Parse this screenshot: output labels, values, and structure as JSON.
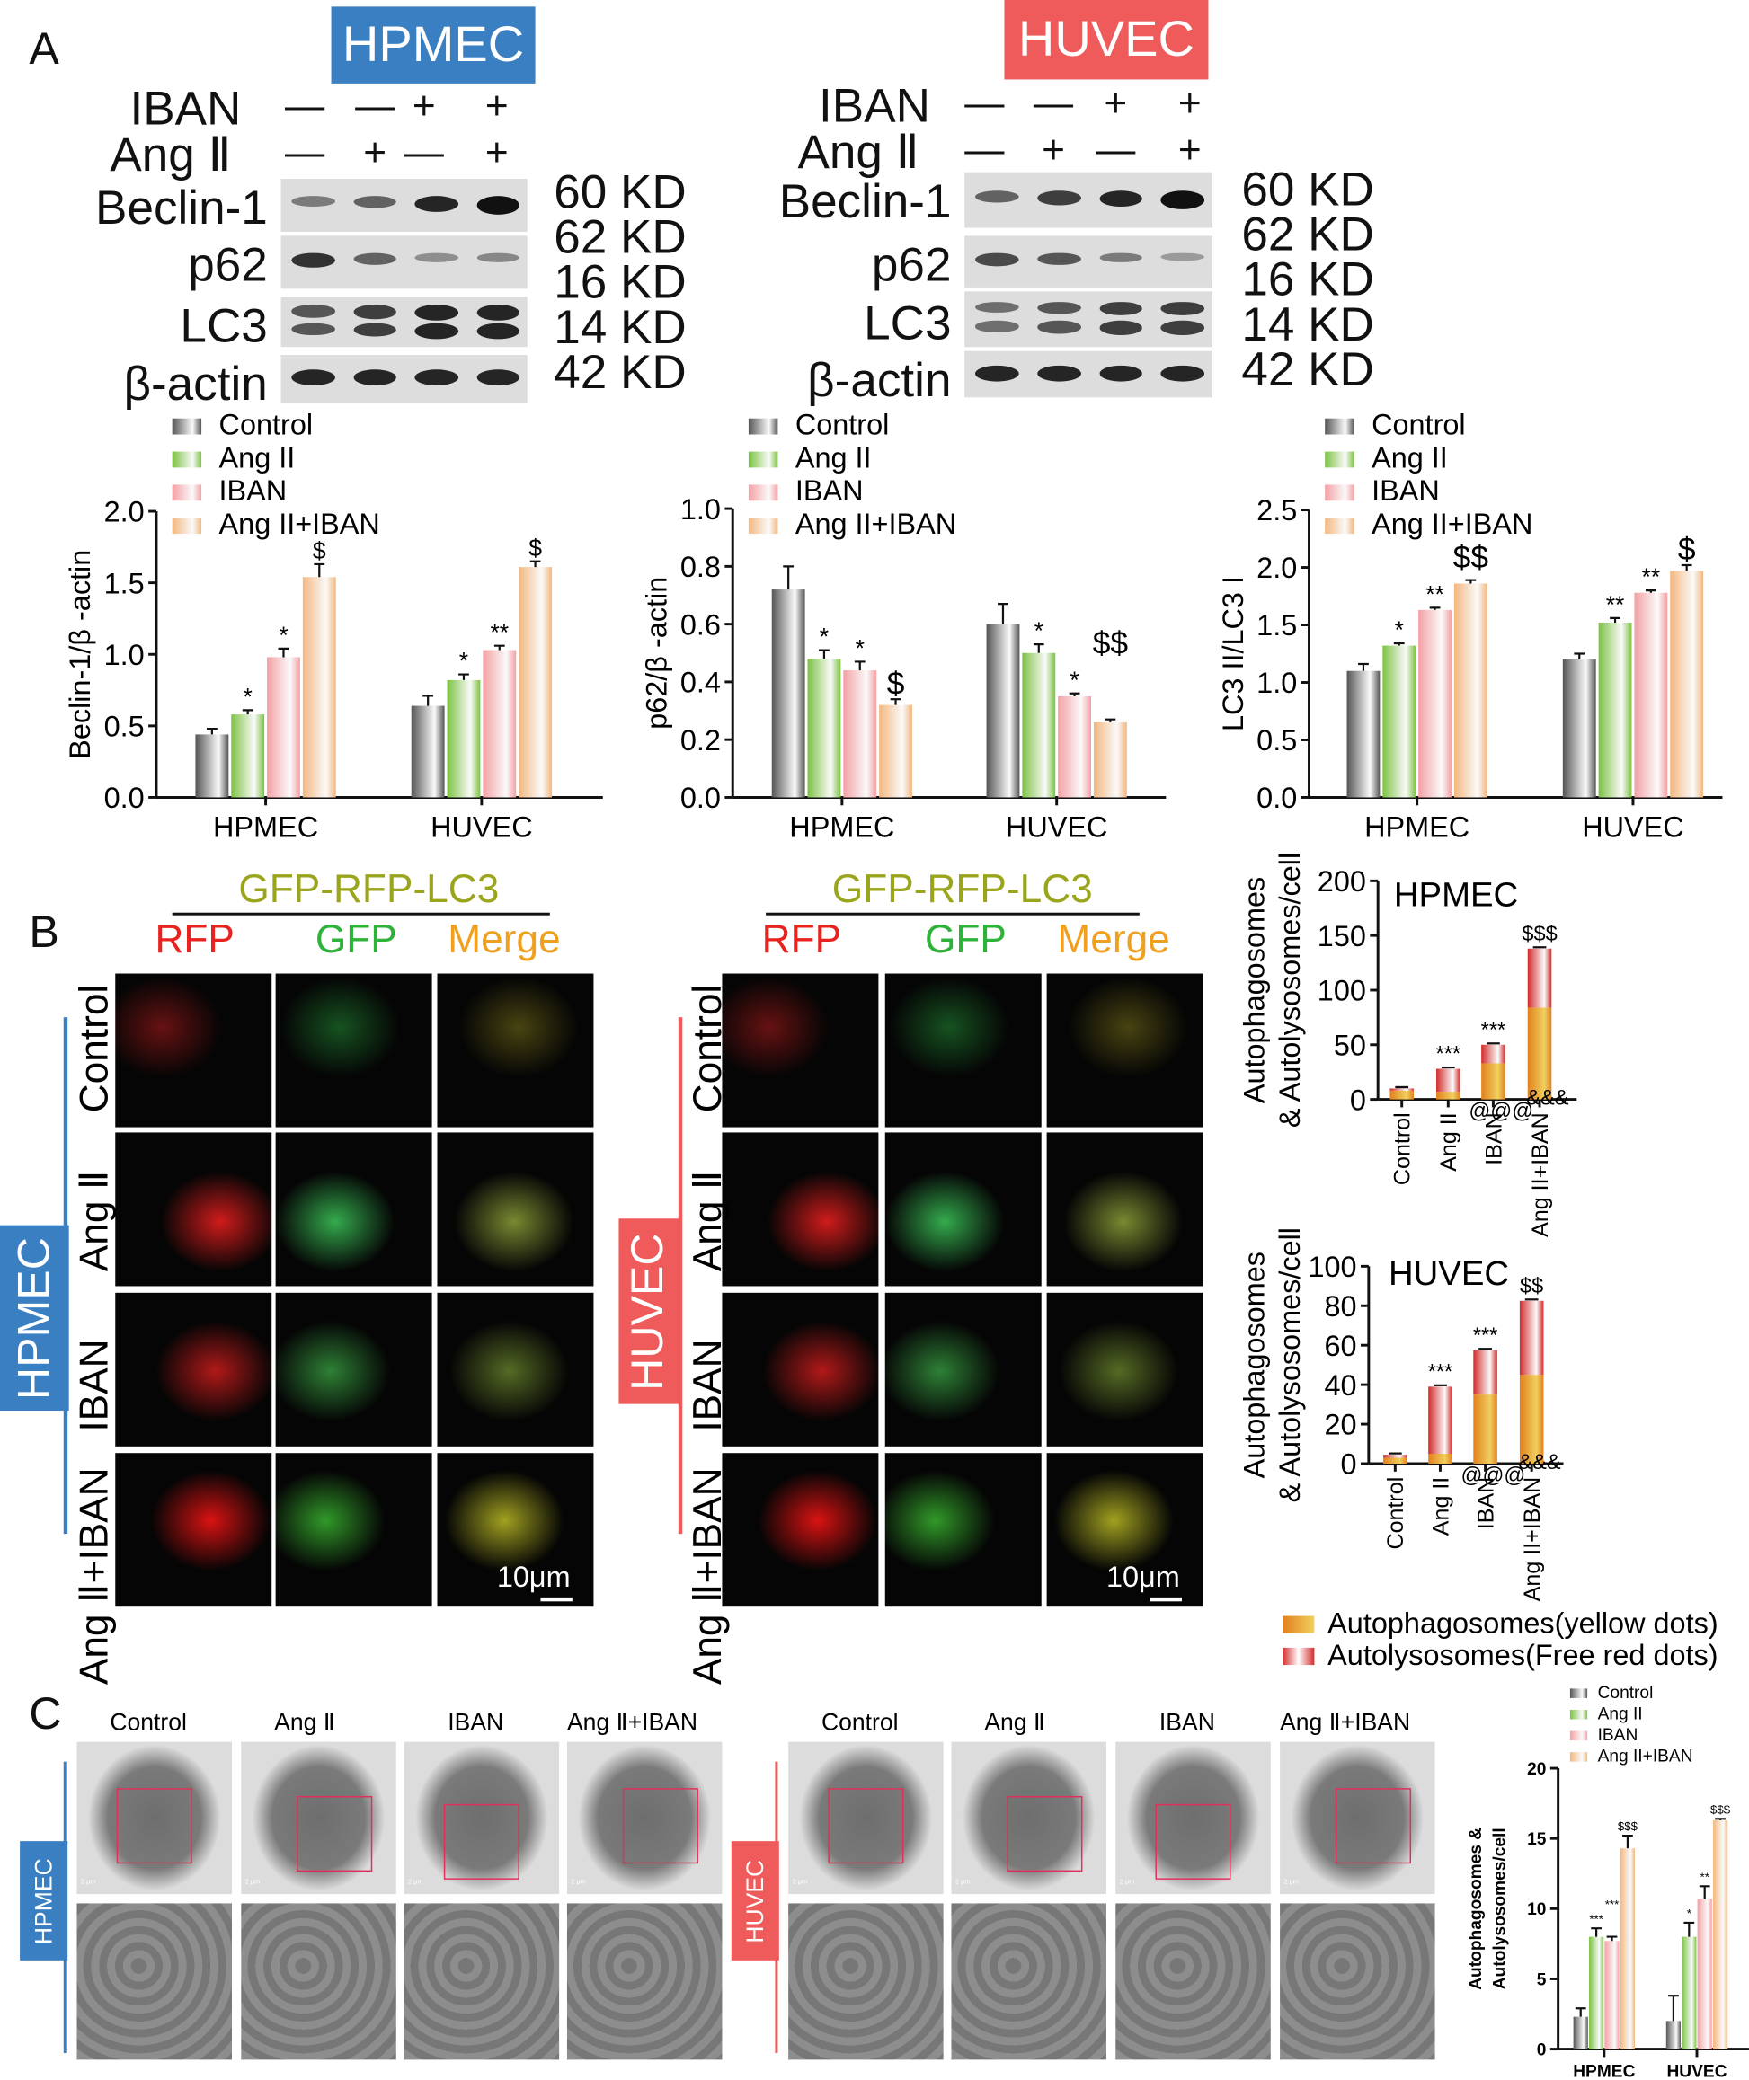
{
  "panel_letters": [
    "A",
    "B",
    "C"
  ],
  "cell_lines": {
    "hpmec": "HPMEC",
    "huvec": "HUVEC"
  },
  "colors": {
    "hpmec": "#3a7fc1",
    "huvec": "#ef5a5a",
    "control": "#555555",
    "ang2": "#7cc242",
    "iban": "#f4a0a4",
    "ang2_iban": "#f3b77f",
    "autophagosome": "#e2801c",
    "autolysosome": "#d42a2a"
  },
  "western": {
    "treatments": {
      "iban": "IBAN",
      "ang2": "Ang Ⅱ",
      "iban_signs": [
        "—",
        "—",
        "+",
        "+"
      ],
      "ang2_signs": [
        "—",
        "+",
        "—",
        "+"
      ]
    },
    "proteins": [
      "Beclin-1",
      "p62",
      "LC3",
      "β-actin"
    ],
    "sizes": [
      "60 KD",
      "62 KD",
      "16 KD",
      "14 KD",
      "42 KD"
    ]
  },
  "fluorescence": {
    "construct": "GFP-RFP-LC3",
    "channels": [
      "RFP",
      "GFP",
      "Merge"
    ],
    "channel_colors": [
      "#e8231f",
      "#2db33a",
      "#f0a020"
    ],
    "rows": [
      "Control",
      "Ang Ⅱ",
      "IBAN",
      "Ang Ⅱ+IBAN"
    ],
    "scale_bar": "10μm",
    "legend": [
      "Autophagosomes(yellow dots)",
      "Autolysosomes(Free red dots)"
    ]
  },
  "tem": {
    "columns": [
      "Control",
      "Ang Ⅱ",
      "IBAN",
      "Ang Ⅱ+IBAN"
    ],
    "scale_label": "2 μm"
  },
  "chart_data": [
    {
      "type": "bar",
      "ylabel": "Beclin-1/β -actin",
      "categories": [
        "HPMEC",
        "HUVEC"
      ],
      "ylim": [
        0,
        2.0
      ],
      "yticks": [
        "0.0",
        "0.5",
        "1.0",
        "1.5",
        "2.0"
      ],
      "legend": "top-left",
      "series": [
        {
          "name": "Control",
          "values": [
            0.44,
            0.64
          ],
          "err": [
            0.04,
            0.07
          ],
          "annot": [
            "",
            ""
          ]
        },
        {
          "name": "Ang II",
          "values": [
            0.58,
            0.82
          ],
          "err": [
            0.03,
            0.04
          ],
          "annot": [
            "*",
            "*"
          ]
        },
        {
          "name": "IBAN",
          "values": [
            0.98,
            1.03
          ],
          "err": [
            0.06,
            0.03
          ],
          "annot": [
            "*",
            "**"
          ]
        },
        {
          "name": "Ang II+IBAN",
          "values": [
            1.54,
            1.61
          ],
          "err": [
            0.09,
            0.04
          ],
          "annot": [
            "$",
            "$"
          ]
        }
      ]
    },
    {
      "type": "bar",
      "ylabel": "p62/β -actin",
      "categories": [
        "HPMEC",
        "HUVEC"
      ],
      "ylim": [
        0,
        1.0
      ],
      "yticks": [
        "0.0",
        "0.2",
        "0.4",
        "0.6",
        "0.8",
        "1.0"
      ],
      "legend": "top-left",
      "series": [
        {
          "name": "Control",
          "values": [
            0.72,
            0.6
          ],
          "err": [
            0.08,
            0.07
          ],
          "annot": [
            "",
            ""
          ]
        },
        {
          "name": "Ang II",
          "values": [
            0.48,
            0.5
          ],
          "err": [
            0.03,
            0.03
          ],
          "annot": [
            "*",
            "*"
          ]
        },
        {
          "name": "IBAN",
          "values": [
            0.44,
            0.35
          ],
          "err": [
            0.03,
            0.01
          ],
          "annot": [
            "*",
            "*"
          ]
        },
        {
          "name": "Ang II+IBAN",
          "values": [
            0.32,
            0.26
          ],
          "err": [
            0.02,
            0.01
          ],
          "annot": [
            "$",
            "$$"
          ]
        }
      ]
    },
    {
      "type": "bar",
      "ylabel": "LC3 II/LC3 I",
      "categories": [
        "HPMEC",
        "HUVEC"
      ],
      "ylim": [
        0,
        2.5
      ],
      "yticks": [
        "0.0",
        "0.5",
        "1.0",
        "1.5",
        "2.0",
        "2.5"
      ],
      "legend": "top-left",
      "series": [
        {
          "name": "Control",
          "values": [
            1.1,
            1.2
          ],
          "err": [
            0.06,
            0.05
          ],
          "annot": [
            "",
            ""
          ]
        },
        {
          "name": "Ang II",
          "values": [
            1.32,
            1.52
          ],
          "err": [
            0.02,
            0.04
          ],
          "annot": [
            "*",
            "**"
          ]
        },
        {
          "name": "IBAN",
          "values": [
            1.63,
            1.78
          ],
          "err": [
            0.02,
            0.02
          ],
          "annot": [
            "**",
            "**"
          ]
        },
        {
          "name": "Ang II+IBAN",
          "values": [
            1.86,
            1.97
          ],
          "err": [
            0.03,
            0.05
          ],
          "annot": [
            "$$",
            "$"
          ]
        }
      ]
    },
    {
      "type": "bar",
      "stacked": true,
      "title": "HPMEC",
      "ylabel": "Autophagosomes & Autolysosomes/cell",
      "categories": [
        "Control",
        "Ang II",
        "IBAN",
        "Ang II+IBAN"
      ],
      "ylim": [
        0,
        200
      ],
      "yticks": [
        "0",
        "50",
        "100",
        "150",
        "200"
      ],
      "series": [
        {
          "name": "Autophagosomes(yellow dots)",
          "values": [
            8,
            7,
            33,
            84
          ],
          "annot": [
            "",
            "",
            "@@@",
            "&&&"
          ]
        },
        {
          "name": "Autolysosomes(Free red dots)",
          "values": [
            2,
            21,
            17,
            54
          ],
          "annot": [
            "",
            "***",
            "***",
            "$$$"
          ]
        }
      ]
    },
    {
      "type": "bar",
      "stacked": true,
      "title": "HUVEC",
      "ylabel": "Autophagosomes & Autolysosomes/cell",
      "categories": [
        "Control",
        "Ang II",
        "IBAN",
        "Ang II+IBAN"
      ],
      "ylim": [
        0,
        100
      ],
      "yticks": [
        "0",
        "20",
        "40",
        "60",
        "80",
        "100"
      ],
      "series": [
        {
          "name": "Autophagosomes(yellow dots)",
          "values": [
            3,
            5,
            35,
            45
          ],
          "annot": [
            "",
            "",
            "@@@",
            "&&&"
          ]
        },
        {
          "name": "Autolysosomes(Free red dots)",
          "values": [
            1.5,
            34,
            22.5,
            37.5
          ],
          "annot": [
            "",
            "***",
            "***",
            "$$"
          ]
        }
      ]
    },
    {
      "type": "bar",
      "ylabel": "Autophagosomes & Autolysosomes/cell",
      "categories": [
        "HPMEC",
        "HUVEC"
      ],
      "ylim": [
        0,
        20
      ],
      "yticks": [
        "0",
        "5",
        "10",
        "15",
        "20"
      ],
      "legend": "top-left",
      "series": [
        {
          "name": "Control",
          "values": [
            2.3,
            2.0
          ],
          "err": [
            0.6,
            1.8
          ],
          "annot": [
            "",
            ""
          ]
        },
        {
          "name": "Ang II",
          "values": [
            8.0,
            8.0
          ],
          "err": [
            0.6,
            1.0
          ],
          "annot": [
            "***",
            "*"
          ]
        },
        {
          "name": "IBAN",
          "values": [
            7.7,
            10.7
          ],
          "err": [
            0.3,
            0.9
          ],
          "annot": [
            "***",
            "**"
          ]
        },
        {
          "name": "Ang II+IBAN",
          "values": [
            14.3,
            16.3
          ],
          "err": [
            0.9,
            0.1
          ],
          "annot": [
            "$$$",
            "$$$"
          ]
        }
      ]
    }
  ]
}
